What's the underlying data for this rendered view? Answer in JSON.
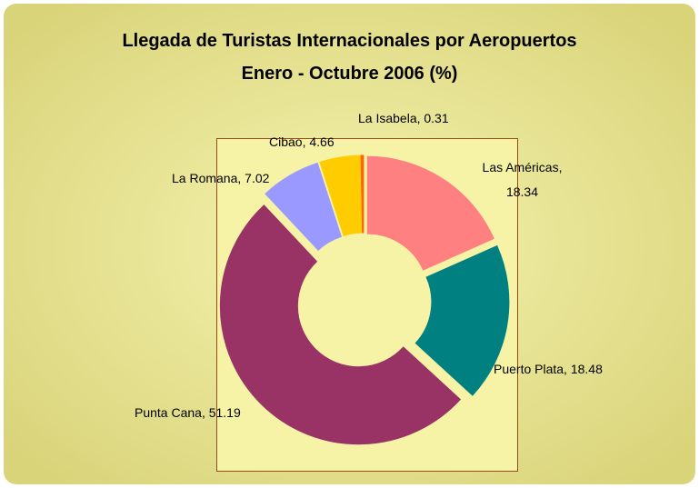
{
  "chart_data": {
    "type": "donut",
    "title": "Llegada de Turistas Internacionales por Aeropuertos",
    "subtitle": "Enero - Octubre 2006   (%)",
    "categories": [
      "Las Américas",
      "Puerto Plata",
      "Punta Cana",
      "La Romana",
      "Cibao",
      "La Isabela"
    ],
    "values": [
      18.34,
      18.48,
      51.19,
      7.02,
      4.66,
      0.31
    ],
    "value_labels": [
      "Las Américas, 18.34",
      "Puerto Plata, 18.48",
      "Punta Cana, 51.19",
      "La Romana, 7.02",
      "Cibao, 4.66",
      "La Isabela, 0.31"
    ],
    "colors": [
      "#FF8080",
      "#008080",
      "#993366",
      "#9999FF",
      "#FFCC00",
      "#FF6600"
    ]
  }
}
